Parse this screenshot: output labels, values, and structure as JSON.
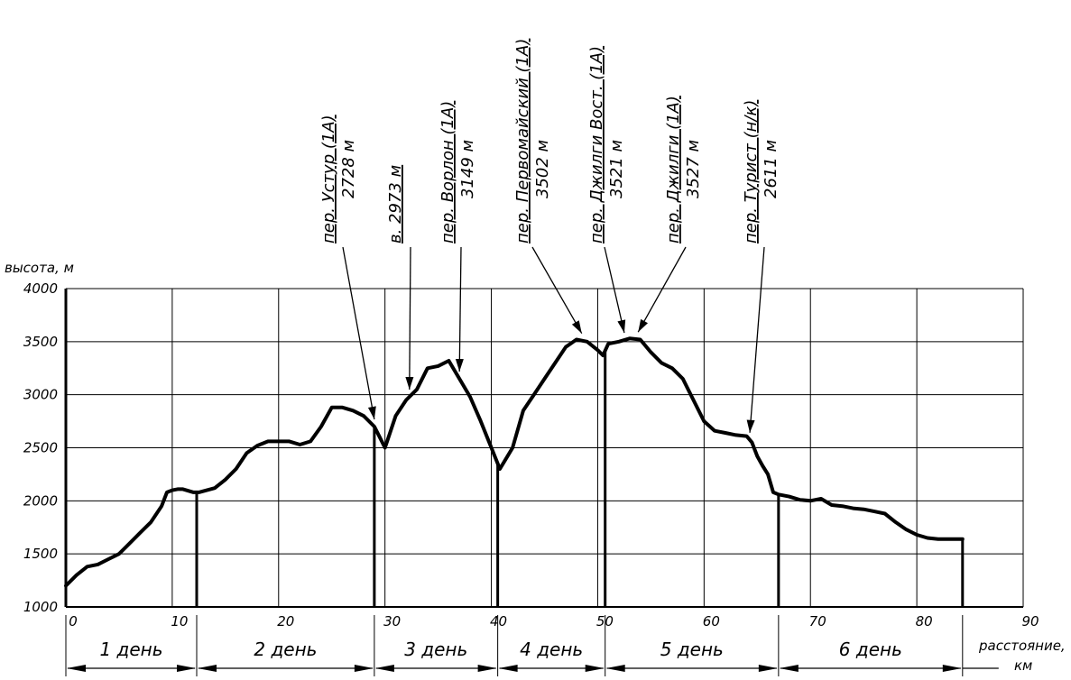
{
  "chart_data": {
    "type": "line",
    "title": "",
    "ylabel": "высота, м",
    "xlabel": [
      "расстояние,",
      "км"
    ],
    "xlim": [
      0,
      90
    ],
    "ylim": [
      1000,
      4000
    ],
    "xticks": [
      0,
      10,
      20,
      30,
      40,
      50,
      60,
      70,
      80,
      90
    ],
    "yticks": [
      1000,
      1500,
      2000,
      2500,
      3000,
      3500,
      4000
    ],
    "grid": true,
    "profile": {
      "name": "",
      "x": [
        0,
        1,
        2,
        3,
        4,
        5,
        6,
        7,
        8,
        9,
        9.5,
        10,
        10.5,
        11,
        12,
        12.5,
        14,
        15,
        16,
        17,
        18,
        19,
        20,
        21,
        22,
        23,
        24,
        25,
        26,
        27,
        28,
        29,
        29.5,
        30,
        30.5,
        31,
        32,
        33,
        34,
        35,
        36,
        37,
        38,
        39,
        40,
        40.8,
        42,
        43,
        44,
        45,
        46,
        47,
        48,
        49,
        50,
        50.5,
        51,
        52,
        53,
        54,
        55,
        56,
        57,
        58,
        59,
        60,
        61,
        62,
        63,
        64,
        64.5,
        65,
        65.5,
        66,
        66.5,
        67,
        68,
        69,
        70,
        71,
        72,
        73,
        74,
        75,
        76,
        77,
        78,
        79,
        80,
        81,
        82,
        83,
        84.3
      ],
      "y": [
        1200,
        1300,
        1380,
        1400,
        1450,
        1500,
        1600,
        1700,
        1800,
        1950,
        2080,
        2100,
        2110,
        2110,
        2080,
        2080,
        2120,
        2200,
        2300,
        2450,
        2520,
        2560,
        2560,
        2560,
        2530,
        2560,
        2700,
        2880,
        2880,
        2850,
        2800,
        2700,
        2600,
        2500,
        2650,
        2800,
        2950,
        3050,
        3250,
        3270,
        3320,
        3150,
        2980,
        2750,
        2500,
        2300,
        2500,
        2850,
        3000,
        3150,
        3300,
        3450,
        3520,
        3500,
        3420,
        3370,
        3480,
        3500,
        3530,
        3520,
        3400,
        3300,
        3250,
        3150,
        2950,
        2750,
        2660,
        2640,
        2620,
        2610,
        2550,
        2420,
        2330,
        2250,
        2080,
        2060,
        2040,
        2010,
        2000,
        2020,
        1960,
        1950,
        1930,
        1920,
        1900,
        1880,
        1800,
        1730,
        1680,
        1650,
        1640,
        1640,
        1640
      ]
    },
    "day_boundaries": [
      0,
      12.3,
      29,
      40.6,
      50.7,
      67,
      84.3
    ],
    "days": [
      "1 день",
      "2 день",
      "3 день",
      "4 день",
      "5 день",
      "6 день"
    ],
    "annotations": [
      {
        "name": "пер. Устур (1А)",
        "elev": "2728 м",
        "x": 29,
        "y": 2728
      },
      {
        "name": "в. 2973 м",
        "elev": "",
        "x": 32.3,
        "y": 2973
      },
      {
        "name": "пер. Ворлон (1А)",
        "elev": "3149 м",
        "x": 37,
        "y": 3149
      },
      {
        "name": "пер. Первомайский (1А)",
        "elev": "3502 м",
        "x": 48.5,
        "y": 3502
      },
      {
        "name": "пер. Джилги Вост. (1А)",
        "elev": "3521 м",
        "x": 52.5,
        "y": 3521
      },
      {
        "name": "пер. Джилги (1А)",
        "elev": "3527 м",
        "x": 53.8,
        "y": 3527
      },
      {
        "name": "пер. Турист (н/к)",
        "elev": "2611 м",
        "x": 64.3,
        "y": 2611
      }
    ]
  }
}
